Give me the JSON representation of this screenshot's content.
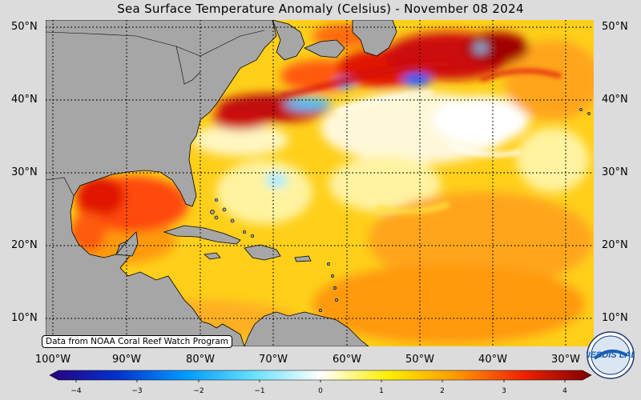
{
  "title": "Sea Surface Temperature Anomaly (Celsius) - November 08 2024",
  "credit": "Data from NOAA Coral Reef Watch Program",
  "logo_text": "NESDIS LAB",
  "latitudes": [
    "50°N",
    "40°N",
    "30°N",
    "20°N",
    "10°N"
  ],
  "longitudes": [
    "100°W",
    "90°W",
    "80°W",
    "70°W",
    "60°W",
    "50°W",
    "40°W",
    "30°W"
  ],
  "colorbar": {
    "ticks": [
      "−4",
      "−3",
      "−2",
      "−1",
      "0",
      "1",
      "2",
      "3",
      "4"
    ],
    "min": -4,
    "max": 4,
    "stops": [
      "#2a0080",
      "#0033cc",
      "#0099ff",
      "#66e0ff",
      "#ffffff",
      "#ffee00",
      "#ff9900",
      "#ee2200",
      "#800000"
    ]
  },
  "colors": {
    "land": "#a6a6a6",
    "ocean_base": "#ffd21f",
    "page_bg": "#dcdcdc"
  },
  "map_extent": {
    "lon": [
      -101,
      -27
    ],
    "lat": [
      6,
      51
    ]
  }
}
